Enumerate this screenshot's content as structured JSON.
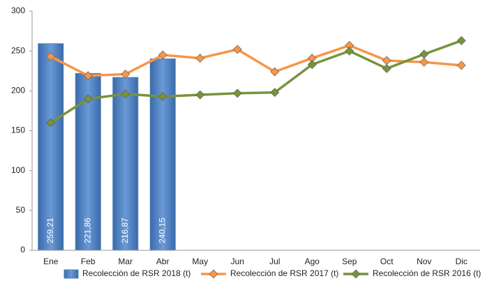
{
  "chart_data": {
    "type": "combo",
    "categories": [
      "Ene",
      "Feb",
      "Mar",
      "Abr",
      "May",
      "Jun",
      "Jul",
      "Ago",
      "Sep",
      "Oct",
      "Nov",
      "Dic"
    ],
    "series": [
      {
        "name": "Recolección de RSR 2018 (t)",
        "type": "bar",
        "color": "#4f81bd",
        "values": [
          259.21,
          221.86,
          216.87,
          240.15,
          null,
          null,
          null,
          null,
          null,
          null,
          null,
          null
        ],
        "value_labels": [
          "259,21",
          "221,86",
          "216,87",
          "240,15",
          null,
          null,
          null,
          null,
          null,
          null,
          null,
          null
        ]
      },
      {
        "name": "Recolección de RSR 2017 (t)",
        "type": "line",
        "color": "#f79646",
        "values": [
          243,
          219,
          221,
          245,
          241,
          252,
          224,
          241,
          257,
          238,
          236,
          232
        ]
      },
      {
        "name": "Recolección de RSR 2016 (t)",
        "type": "line",
        "color": "#77933c",
        "values": [
          160,
          190,
          196,
          193,
          195,
          197,
          198,
          233,
          250,
          228,
          246,
          263
        ]
      }
    ],
    "ylim": [
      0,
      300
    ],
    "yticks": [
      0,
      50,
      100,
      150,
      200,
      250,
      300
    ],
    "grid": false,
    "legend": "bottom"
  }
}
